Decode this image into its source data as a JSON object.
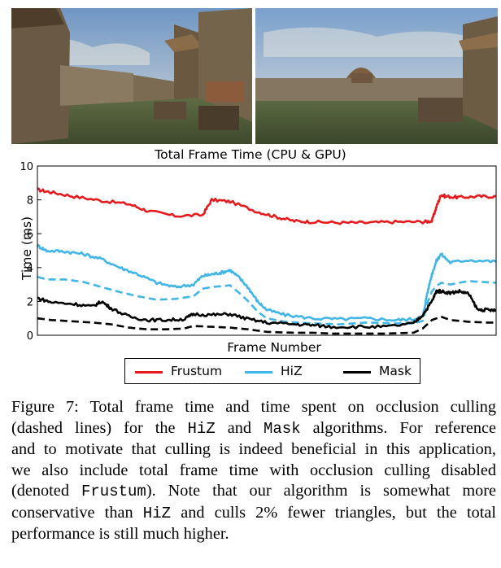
{
  "figure": {
    "title": "Total Frame Time (CPU & GPU)",
    "caption": {
      "label": "Figure 7:",
      "lines": [
        [
          {
            "t": "Figure 7: Total frame time and time spent on occlusion culling"
          }
        ],
        [
          {
            "t": "(dashed lines) for the "
          },
          {
            "t": "HiZ",
            "mono": true
          },
          {
            "t": " and "
          },
          {
            "t": "Mask",
            "mono": true
          },
          {
            "t": " algorithms. For reference"
          }
        ],
        [
          {
            "t": "and to motivate that culling is indeed beneficial in this application,"
          }
        ],
        [
          {
            "t": "we also include total frame time with occlusion culling disabled"
          }
        ],
        [
          {
            "t": "(denoted "
          },
          {
            "t": "Frustum",
            "mono": true
          },
          {
            "t": "). Note that our algorithm is somewhat more"
          }
        ],
        [
          {
            "t": "conservative than "
          },
          {
            "t": "HiZ",
            "mono": true
          },
          {
            "t": " and culls 2% fewer triangles, but the total"
          }
        ],
        [
          {
            "t": "performance is still much higher."
          }
        ]
      ]
    }
  },
  "chart_data": {
    "type": "line",
    "title": "Total Frame Time (CPU & GPU)",
    "xlabel": "Frame Number",
    "ylabel": "Time (ms)",
    "xlim": [
      0,
      100
    ],
    "ylim": [
      0,
      10
    ],
    "yticks": [
      "0",
      "2",
      "4",
      "6",
      "8",
      "10"
    ],
    "grid": false,
    "legend_position": "bottom",
    "series": [
      {
        "name": "Frustum",
        "color": "#e41a1c",
        "style": "solid",
        "x": [
          0,
          3,
          8,
          14,
          20,
          24,
          30,
          36,
          38,
          42,
          48,
          52,
          56,
          60,
          66,
          72,
          78,
          84,
          86,
          87,
          88,
          89,
          92,
          96,
          100
        ],
        "y": [
          8.6,
          8.45,
          8.2,
          7.95,
          7.75,
          7.35,
          7.05,
          7.1,
          8.0,
          7.9,
          7.3,
          7.0,
          6.75,
          6.7,
          6.65,
          6.65,
          6.7,
          6.7,
          6.75,
          7.6,
          8.3,
          8.2,
          8.15,
          8.2,
          8.2
        ]
      },
      {
        "name": "HiZ",
        "color": "#41b6e6",
        "style": "solid",
        "x": [
          0,
          2,
          6,
          10,
          14,
          18,
          22,
          26,
          30,
          34,
          36,
          38,
          40,
          42,
          44,
          46,
          48,
          50,
          54,
          60,
          66,
          72,
          78,
          82,
          84,
          85,
          86,
          87,
          88,
          90,
          94,
          100
        ],
        "y": [
          5.3,
          5.0,
          4.95,
          4.8,
          4.5,
          4.0,
          3.6,
          3.1,
          2.85,
          3.0,
          3.5,
          3.6,
          3.7,
          3.85,
          3.4,
          2.8,
          2.0,
          1.5,
          1.2,
          1.0,
          0.95,
          1.0,
          0.9,
          0.95,
          1.1,
          2.5,
          3.6,
          4.4,
          4.8,
          4.3,
          4.45,
          4.35
        ]
      },
      {
        "name": "HiZ culling",
        "color": "#41b6e6",
        "style": "dashed",
        "x": [
          0,
          2,
          6,
          10,
          14,
          18,
          22,
          26,
          30,
          34,
          36,
          38,
          40,
          42,
          44,
          46,
          48,
          50,
          54,
          60,
          66,
          72,
          78,
          82,
          84,
          85,
          86,
          87,
          88,
          90,
          94,
          100
        ],
        "y": [
          3.45,
          3.3,
          3.3,
          3.15,
          2.85,
          2.55,
          2.3,
          2.1,
          2.15,
          2.3,
          2.75,
          2.85,
          2.9,
          2.95,
          2.5,
          2.0,
          1.4,
          1.0,
          0.8,
          0.7,
          0.65,
          0.75,
          0.7,
          0.7,
          0.85,
          1.9,
          2.6,
          2.9,
          3.1,
          3.0,
          3.2,
          3.1
        ]
      },
      {
        "name": "Mask",
        "color": "#000000",
        "style": "solid",
        "x": [
          0,
          3,
          8,
          12,
          14,
          16,
          20,
          24,
          28,
          32,
          34,
          38,
          42,
          46,
          50,
          56,
          60,
          64,
          70,
          76,
          82,
          84,
          86,
          87,
          88,
          90,
          92,
          94,
          96,
          98,
          100
        ],
        "y": [
          2.2,
          1.95,
          1.85,
          1.7,
          2.0,
          1.6,
          1.1,
          0.9,
          0.9,
          0.95,
          1.25,
          1.2,
          1.25,
          0.95,
          0.75,
          0.65,
          0.6,
          0.5,
          0.5,
          0.5,
          0.7,
          1.2,
          2.0,
          2.6,
          2.6,
          2.5,
          2.6,
          2.45,
          1.5,
          1.5,
          1.45
        ]
      },
      {
        "name": "Mask culling",
        "color": "#000000",
        "style": "dashed",
        "x": [
          0,
          3,
          8,
          12,
          16,
          20,
          24,
          28,
          32,
          34,
          38,
          42,
          46,
          50,
          56,
          60,
          64,
          70,
          76,
          82,
          84,
          86,
          88,
          90,
          94,
          98,
          100
        ],
        "y": [
          1.0,
          0.9,
          0.82,
          0.75,
          0.65,
          0.45,
          0.35,
          0.35,
          0.4,
          0.55,
          0.5,
          0.45,
          0.35,
          0.2,
          0.15,
          0.15,
          0.1,
          0.1,
          0.1,
          0.15,
          0.4,
          0.9,
          1.1,
          0.9,
          0.8,
          0.75,
          0.75
        ]
      }
    ]
  }
}
